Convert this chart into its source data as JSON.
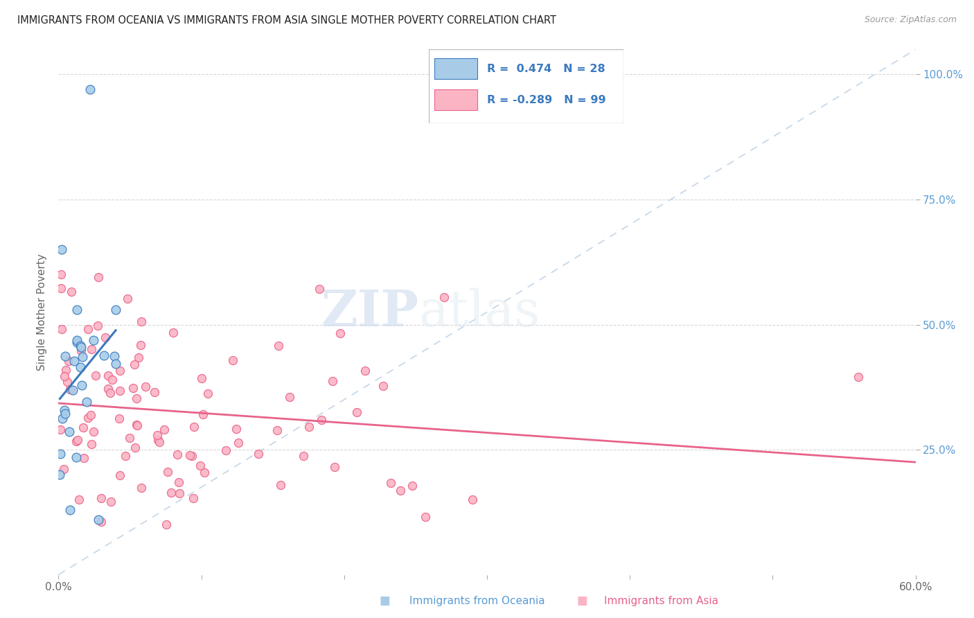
{
  "title": "IMMIGRANTS FROM OCEANIA VS IMMIGRANTS FROM ASIA SINGLE MOTHER POVERTY CORRELATION CHART",
  "source": "Source: ZipAtlas.com",
  "ylabel": "Single Mother Poverty",
  "ytick_vals": [
    0.25,
    0.5,
    0.75,
    1.0
  ],
  "ytick_labels": [
    "25.0%",
    "50.0%",
    "75.0%",
    "100.0%"
  ],
  "xlim": [
    0.0,
    0.6
  ],
  "ylim": [
    0.0,
    1.05
  ],
  "oceania_color": "#a8cce8",
  "asia_color": "#fbb4c4",
  "oceania_line_color": "#3a7abf",
  "asia_line_color": "#e8638a",
  "diagonal_color": "#c8d8e8",
  "watermark_zip": "ZIP",
  "watermark_atlas": "atlas",
  "oceania_R": 0.474,
  "oceania_N": 28,
  "asia_R": -0.289,
  "asia_N": 99,
  "seed": 12345
}
